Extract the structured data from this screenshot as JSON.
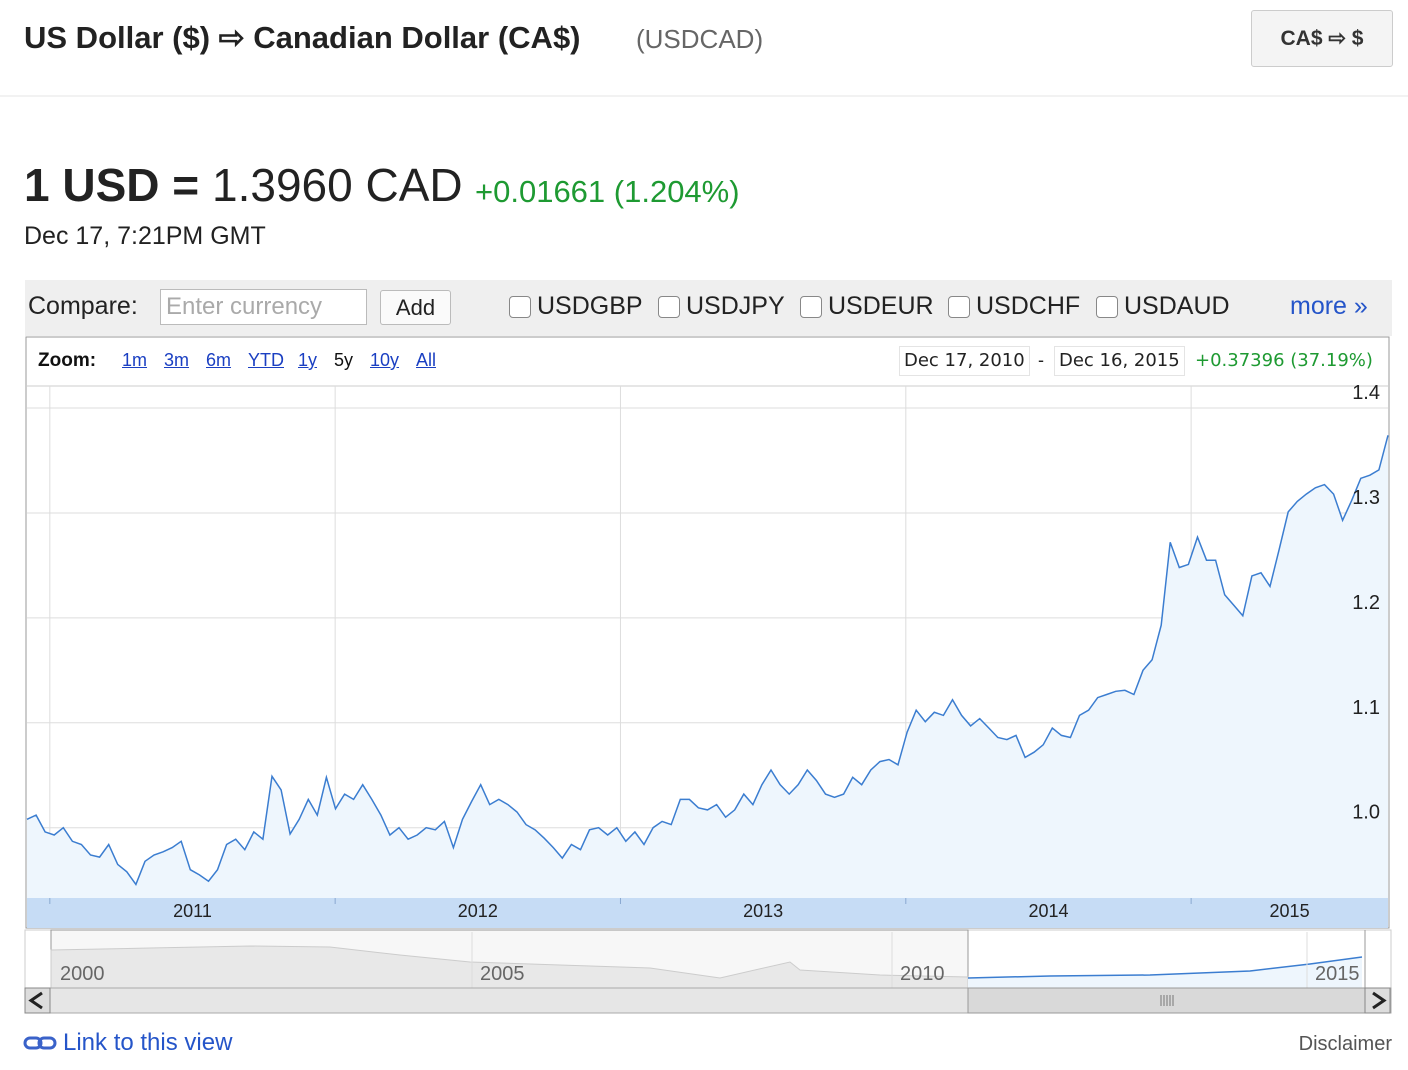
{
  "header": {
    "title": "US Dollar ($) ⇨ Canadian Dollar (CA$)",
    "code": "(USDCAD)",
    "swap_button": "CA$ ⇨ $"
  },
  "quote": {
    "lead": "1 USD =",
    "rate": "1.3960 CAD",
    "change": "+0.01661 (1.204%)",
    "time": "Dec 17, 7:21PM GMT"
  },
  "compare": {
    "label": "Compare:",
    "placeholder": "Enter currency",
    "button": "Add",
    "options": [
      "USDGBP",
      "USDJPY",
      "USDEUR",
      "USDCHF",
      "USDAUD"
    ],
    "more": "more »"
  },
  "zoom": {
    "label": "Zoom:",
    "options": [
      "1m",
      "3m",
      "6m",
      "YTD",
      "1y",
      "5y",
      "10y",
      "All"
    ],
    "range_start": "Dec 17, 2010",
    "range_separator": "-",
    "range_end": "Dec 16, 2015",
    "range_change": "+0.37396 (37.19%)"
  },
  "chart_data": {
    "type": "line",
    "color": "#3b7dd0",
    "fill": "#eef6fd",
    "grid": true,
    "xlim": [
      2010.92,
      2015.69
    ],
    "xticks": [
      2011,
      2012,
      2013,
      2014,
      2015
    ],
    "ylim": [
      0.933,
      1.421
    ],
    "yticks": [
      {
        "value": 1,
        "label": "1.0"
      },
      1.1,
      1.2,
      1.3,
      1.4
    ],
    "values": [
      1.008,
      1.012,
      0.996,
      0.993,
      1.0,
      0.987,
      0.984,
      0.974,
      0.972,
      0.984,
      0.965,
      0.958,
      0.946,
      0.968,
      0.974,
      0.977,
      0.981,
      0.987,
      0.96,
      0.955,
      0.949,
      0.96,
      0.984,
      0.989,
      0.979,
      0.996,
      0.989,
      1.049,
      1.036,
      0.994,
      1.008,
      1.027,
      1.012,
      1.048,
      1.018,
      1.032,
      1.027,
      1.041,
      1.027,
      1.012,
      0.993,
      1.0,
      0.989,
      0.993,
      1.0,
      0.998,
      1.006,
      0.981,
      1.008,
      1.025,
      1.041,
      1.022,
      1.027,
      1.022,
      1.015,
      1.003,
      0.998,
      0.99,
      0.981,
      0.971,
      0.984,
      0.979,
      0.998,
      1.0,
      0.993,
      1.0,
      0.987,
      0.996,
      0.984,
      1.0,
      1.006,
      1.003,
      1.027,
      1.027,
      1.019,
      1.017,
      1.022,
      1.01,
      1.017,
      1.032,
      1.022,
      1.041,
      1.055,
      1.041,
      1.032,
      1.041,
      1.055,
      1.045,
      1.032,
      1.029,
      1.032,
      1.048,
      1.041,
      1.055,
      1.063,
      1.065,
      1.06,
      1.091,
      1.112,
      1.101,
      1.11,
      1.107,
      1.122,
      1.107,
      1.097,
      1.104,
      1.095,
      1.086,
      1.084,
      1.088,
      1.067,
      1.072,
      1.079,
      1.095,
      1.088,
      1.086,
      1.107,
      1.112,
      1.124,
      1.127,
      1.13,
      1.131,
      1.127,
      1.15,
      1.16,
      1.193,
      1.272,
      1.248,
      1.251,
      1.277,
      1.255,
      1.255,
      1.222,
      1.212,
      1.202,
      1.24,
      1.243,
      1.23,
      1.265,
      1.301,
      1.311,
      1.318,
      1.324,
      1.327,
      1.318,
      1.293,
      1.312,
      1.333,
      1.336,
      1.341,
      1.374
    ]
  },
  "navigator": {
    "labels": [
      "2000",
      "2005",
      "2010",
      "2015"
    ]
  },
  "footer": {
    "link": "Link to this view",
    "disclaimer": "Disclaimer"
  }
}
